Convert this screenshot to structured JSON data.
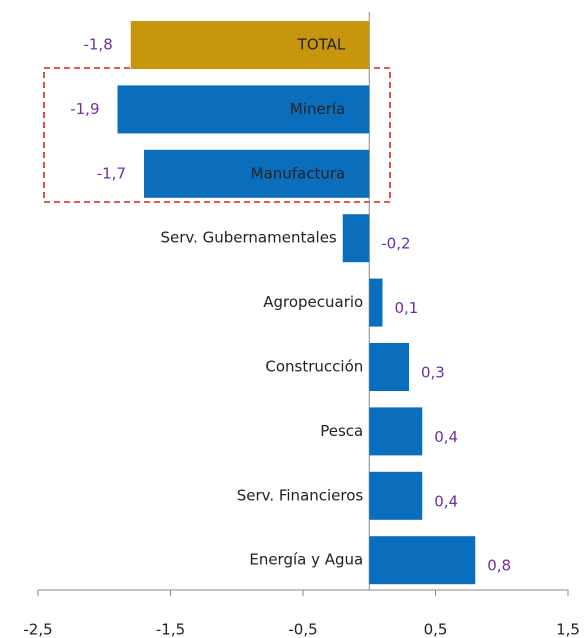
{
  "chart_data": {
    "type": "bar",
    "orientation": "horizontal",
    "categories": [
      "TOTAL",
      "Minería",
      "Manufactura",
      "Serv. Gubernamentales",
      "Agropecuario",
      "Construcción",
      "Pesca",
      "Serv. Financieros",
      "Energía y Agua"
    ],
    "values": [
      -1.8,
      -1.9,
      -1.7,
      -0.2,
      0.1,
      0.3,
      0.4,
      0.4,
      0.8
    ],
    "value_labels": [
      "-1,8",
      "-1,9",
      "-1,7",
      "-0,2",
      "0,1",
      "0,3",
      "0,4",
      "0,4",
      "0,8"
    ],
    "colors": [
      "#c8960c",
      "#0a6ebd",
      "#0a6ebd",
      "#0a6ebd",
      "#0a6ebd",
      "#0a6ebd",
      "#0a6ebd",
      "#0a6ebd",
      "#0a6ebd"
    ],
    "xlim": [
      -2.5,
      1.5
    ],
    "xticks": [
      {
        "value": -2.5,
        "label": "-2,5"
      },
      {
        "value": -1.5,
        "label": "-1,5"
      },
      {
        "value": -0.5,
        "label": "-0,5"
      },
      {
        "value": 0.5,
        "label": "0,5"
      },
      {
        "value": 1.5,
        "label": "1,5"
      }
    ],
    "value_label_color": "#7030a0"
  }
}
